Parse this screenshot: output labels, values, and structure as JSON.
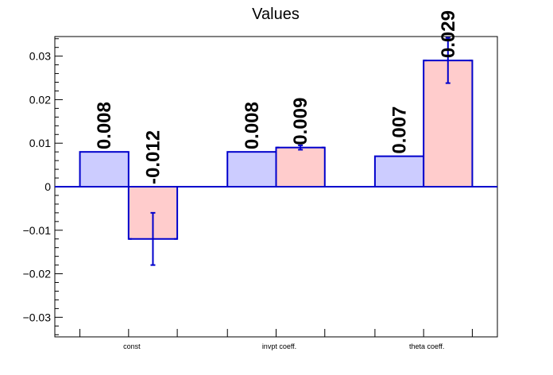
{
  "chart_data": {
    "type": "bar",
    "title": "Values",
    "xlabel": "",
    "ylabel": "",
    "categories": [
      "const",
      "invpt coeff.",
      "theta coeff."
    ],
    "ylim": [
      -0.0345,
      0.0345
    ],
    "yticks": [
      -0.03,
      -0.02,
      -0.01,
      0,
      0.01,
      0.02,
      0.03
    ],
    "ytick_labels": [
      "−0.03",
      "−0.02",
      "−0.01",
      "0",
      "0.01",
      "0.02",
      "0.03"
    ],
    "grid": false,
    "legend": "none",
    "series": [
      {
        "values": [
          0.008,
          0.008,
          0.007
        ],
        "errors": [
          0,
          0,
          0
        ],
        "labels": [
          "0.008",
          "0.008",
          "0.007"
        ],
        "fill": "#ccccff",
        "stroke": "#0000cc"
      },
      {
        "values": [
          -0.012,
          0.009,
          0.029
        ],
        "errors": [
          0.006,
          0.0005,
          0.0052
        ],
        "labels": [
          "-0.012",
          "0.009",
          "0.029"
        ],
        "fill": "#ffcccc",
        "stroke": "#0000cc"
      }
    ]
  }
}
